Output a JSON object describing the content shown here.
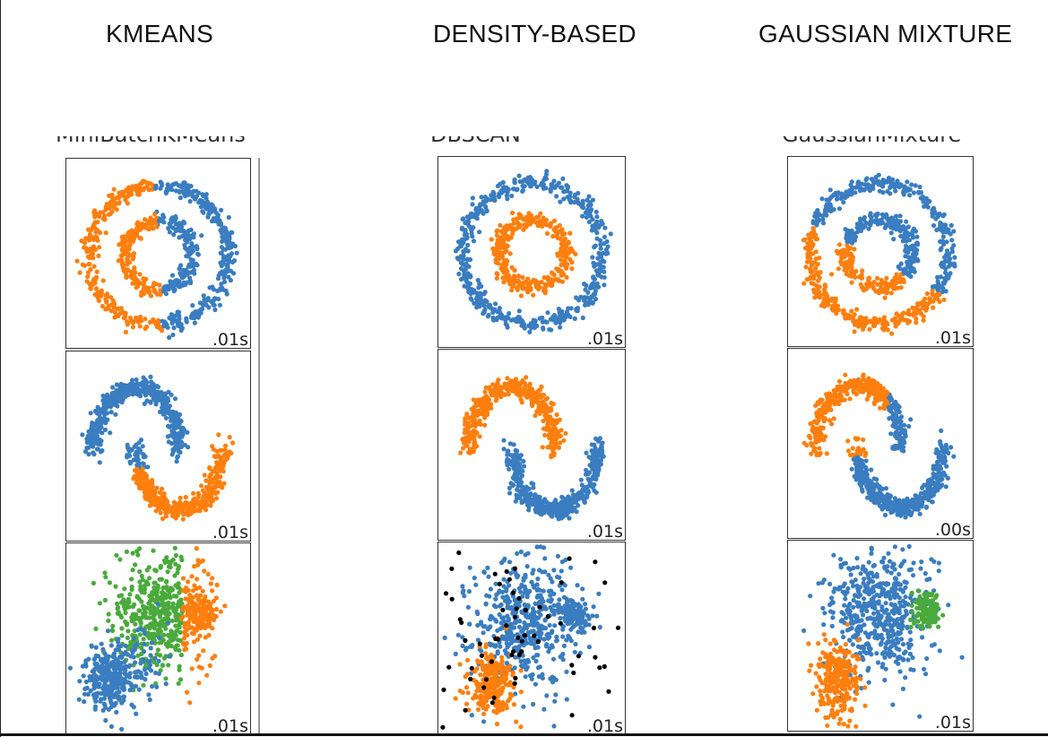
{
  "columns": [
    {
      "title": "KMEANS",
      "clipped_label": "MiniBatchKMeans"
    },
    {
      "title": "DENSITY-BASED",
      "clipped_label": "DBSCAN"
    },
    {
      "title": "GAUSSIAN MIXTURE",
      "clipped_label": "GaussianMixture"
    }
  ],
  "colors": {
    "blue": "#3a7dc0",
    "orange": "#ff7f0e",
    "green": "#4aaa3c",
    "black": "#000000"
  },
  "chart_data": [
    {
      "type": "scatter",
      "algorithm": "KMEANS",
      "dataset": "circles",
      "time_label": ".01s",
      "clusters": [
        "orange: left half of both rings",
        "blue: right half of both rings"
      ]
    },
    {
      "type": "scatter",
      "algorithm": "KMEANS",
      "dataset": "moons",
      "time_label": ".01s",
      "clusters": [
        "blue: upper-left moon and part of lower moon",
        "orange: remainder of lower moon"
      ]
    },
    {
      "type": "scatter",
      "algorithm": "KMEANS",
      "dataset": "blobs",
      "time_label": ".01s",
      "clusters": [
        "green: large central blob",
        "orange: right small blob",
        "blue: lower-left blob"
      ]
    },
    {
      "type": "scatter",
      "algorithm": "DENSITY-BASED",
      "dataset": "circles",
      "time_label": ".01s",
      "clusters": [
        "blue: outer ring",
        "orange: inner ring"
      ]
    },
    {
      "type": "scatter",
      "algorithm": "DENSITY-BASED",
      "dataset": "moons",
      "time_label": ".01s",
      "clusters": [
        "orange: upper moon",
        "blue: lower moon"
      ]
    },
    {
      "type": "scatter",
      "algorithm": "DENSITY-BASED",
      "dataset": "blobs",
      "time_label": ".01s",
      "clusters": [
        "blue: central and right blob",
        "orange: lower-left blob",
        "black: noise points"
      ]
    },
    {
      "type": "scatter",
      "algorithm": "GAUSSIAN MIXTURE",
      "dataset": "circles",
      "time_label": ".01s",
      "clusters": [
        "blue: upper-right portion",
        "orange: lower-left portion"
      ]
    },
    {
      "type": "scatter",
      "algorithm": "GAUSSIAN MIXTURE",
      "dataset": "moons",
      "time_label": ".00s",
      "clusters": [
        "orange: upper moon",
        "blue: lower moon"
      ]
    },
    {
      "type": "scatter",
      "algorithm": "GAUSSIAN MIXTURE",
      "dataset": "blobs",
      "time_label": ".01s",
      "clusters": [
        "blue: central blob",
        "green: right small blob",
        "orange: lower-left blob"
      ]
    }
  ]
}
